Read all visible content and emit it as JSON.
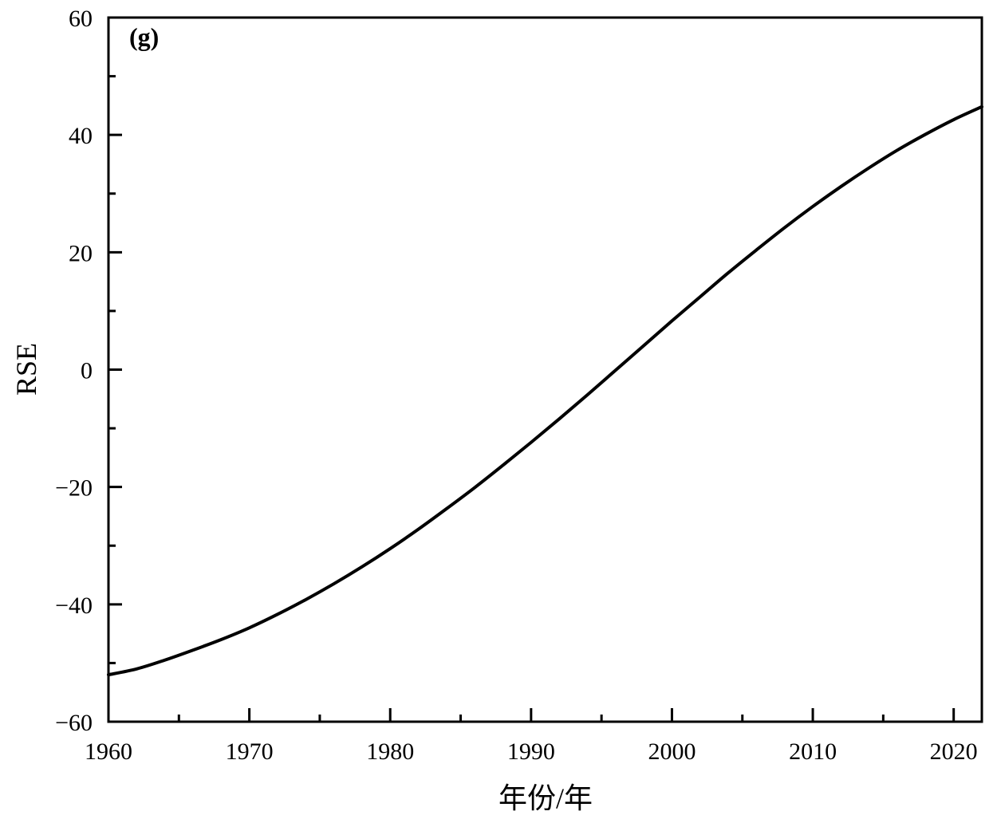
{
  "chart_data": {
    "type": "line",
    "panel_label": "(g)",
    "xlabel": "年份/年",
    "ylabel": "RSE",
    "xlim": [
      1960,
      2022
    ],
    "ylim": [
      -60,
      60
    ],
    "x_ticks": [
      1960,
      1970,
      1980,
      1990,
      2000,
      2010,
      2020
    ],
    "x_tick_labels": [
      "1960",
      "1970",
      "1980",
      "1990",
      "2000",
      "2010",
      "2020"
    ],
    "y_ticks": [
      -60,
      -40,
      -20,
      0,
      20,
      40,
      60
    ],
    "y_tick_labels": [
      "−60",
      "−40",
      "−20",
      "0",
      "20",
      "40",
      "60"
    ],
    "x_minor_ticks": [
      1965,
      1975,
      1985,
      1995,
      2005,
      2015
    ],
    "y_minor_ticks": [
      -50,
      -30,
      -10,
      10,
      30,
      50
    ],
    "grid": false,
    "line_color": "#000000",
    "series": [
      {
        "x": [
          1960,
          1962,
          1964,
          1966,
          1968,
          1970,
          1972,
          1974,
          1976,
          1978,
          1980,
          1982,
          1984,
          1986,
          1988,
          1990,
          1992,
          1994,
          1996,
          1998,
          2000,
          2002,
          2004,
          2006,
          2008,
          2010,
          2012,
          2014,
          2016,
          2018,
          2020,
          2022
        ],
        "y": [
          -52.0,
          -51.0,
          -49.5,
          -47.8,
          -46.0,
          -44.0,
          -41.7,
          -39.2,
          -36.5,
          -33.6,
          -30.5,
          -27.2,
          -23.7,
          -20.1,
          -16.3,
          -12.4,
          -8.4,
          -4.3,
          -0.1,
          4.1,
          8.3,
          12.4,
          16.5,
          20.4,
          24.2,
          27.8,
          31.2,
          34.4,
          37.4,
          40.1,
          42.6,
          44.8
        ]
      }
    ]
  }
}
